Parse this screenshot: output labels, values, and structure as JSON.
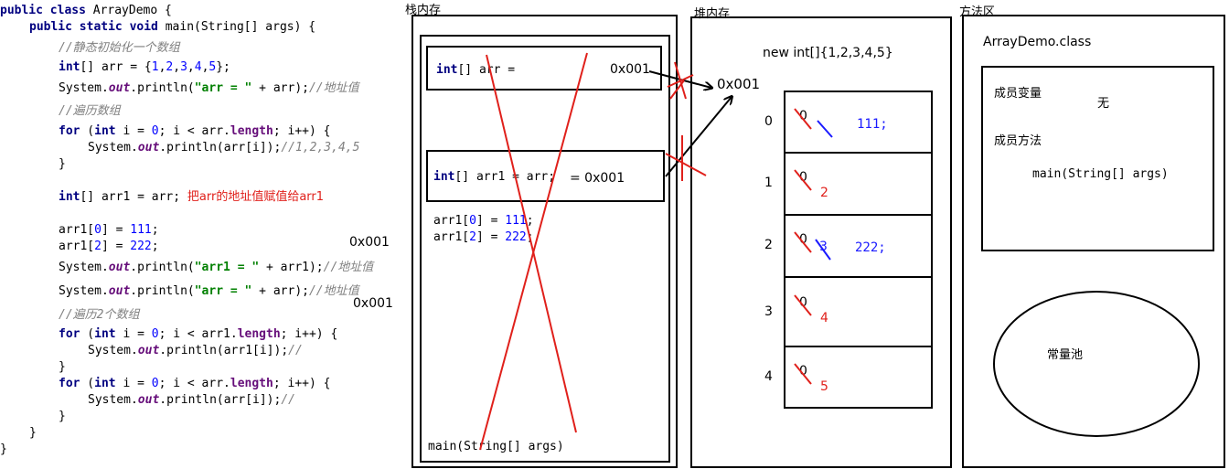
{
  "code": {
    "l1_kw": "public class",
    "l1_rest": " ArrayDemo {",
    "l2_kw": "public static void",
    "l2_rest": " main(String[] args) {",
    "c1": "//静态初始化一个数组",
    "l4_kw": "int",
    "l4_a": "[] arr = {",
    "l4_n1": "1",
    "l4_n2": "2",
    "l4_n3": "3",
    "l4_n4": "4",
    "l4_n5": "5",
    "l4_end": "};",
    "l5_a": "System.",
    "l5_out": "out",
    "l5_b": ".println(",
    "l5_str": "\"arr = \"",
    "l5_c": " + arr);",
    "l5_cm": "//地址值",
    "c2": "//遍历数组",
    "l7_for": "for",
    "l7_a": " (",
    "l7_int": "int",
    "l7_b": " i = ",
    "l7_0": "0",
    "l7_c": "; i < arr.",
    "l7_len": "length",
    "l7_d": "; i++) {",
    "l8_a": "System.",
    "l8_out": "out",
    "l8_b": ".println(arr[i]);",
    "l8_cm": "//1,2,3,4,5",
    "l9": "}",
    "l10_kw": "int",
    "l10_rest": "[] arr1 = arr;",
    "l10_red": "把arr的地址值赋值给arr1",
    "l11_a": "arr1[",
    "l11_i": "0",
    "l11_b": "] = ",
    "l11_v": "111",
    "l11_c": ";",
    "l12_a": "arr1[",
    "l12_i": "2",
    "l12_b": "] = ",
    "l12_v": "222",
    "l12_c": ";",
    "l13_a": "System.",
    "l13_out": "out",
    "l13_b": ".println(",
    "l13_str": "\"arr1 = \"",
    "l13_c": " + arr1);",
    "l13_cm": "//地址值",
    "l14_a": "System.",
    "l14_out": "out",
    "l14_b": ".println(",
    "l14_str": "\"arr = \"",
    "l14_c": " + arr);",
    "l14_cm": "//地址值",
    "c3": "//遍历2个数组",
    "l16_for": "for",
    "l16_a": " (",
    "l16_int": "int",
    "l16_b": " i = ",
    "l16_0": "0",
    "l16_c": "; i < arr1.",
    "l16_len": "length",
    "l16_d": "; i++) {",
    "l17_a": "System.",
    "l17_out": "out",
    "l17_b": ".println(arr1[i]);",
    "l17_cm": "//",
    "l18": "}",
    "l19_for": "for",
    "l19_a": " (",
    "l19_int": "int",
    "l19_b": " i = ",
    "l19_0": "0",
    "l19_c": "; i < arr.",
    "l19_len": "length",
    "l19_d": "; i++) {",
    "l20_a": "System.",
    "l20_out": "out",
    "l20_b": ".println(arr[i]);",
    "l20_cm": "//",
    "l21": "}",
    "l22": "}",
    "l23": "}"
  },
  "notes": {
    "addr_a": "0x001",
    "addr_b": "0x001"
  },
  "stack": {
    "title": "栈内存",
    "var1_kw": "int",
    "var1_rest": "[] arr =",
    "var1_addr": "0x001",
    "var2_kw": "int",
    "var2_rest": "[] arr1 = arr;",
    "var2_addr": "= 0x001",
    "a1_a": "arr1[",
    "a1_i": "0",
    "a1_b": "] = ",
    "a1_v": "111",
    "a1_c": ";",
    "a2_a": "arr1[",
    "a2_i": "2",
    "a2_b": "] = ",
    "a2_v": "222",
    "a2_c": ";",
    "frame": "main(String[] args)"
  },
  "heap": {
    "title": "堆内存",
    "new_label": "new int[]{1,2,3,4,5}",
    "addr": "0x001",
    "cells": [
      {
        "index": "0",
        "old": "0",
        "val": "111;",
        "val_color": "#1a1aff"
      },
      {
        "index": "1",
        "old": "0",
        "val": "2",
        "val_color": "#e0201b"
      },
      {
        "index": "2",
        "old": "0",
        "mid": "3",
        "val": "222;",
        "val_color": "#1a1aff"
      },
      {
        "index": "3",
        "old": "0",
        "val": "4",
        "val_color": "#e0201b"
      },
      {
        "index": "4",
        "old": "0",
        "val": "5",
        "val_color": "#e0201b"
      }
    ]
  },
  "method": {
    "title": "方法区",
    "class_name": "ArrayDemo.class",
    "member_vars": "成员变量",
    "none": "无",
    "member_methods": "成员方法",
    "main_sig": "main(String[] args)",
    "constant_pool": "常量池"
  },
  "colors": {
    "strike": "#e0201b",
    "blue": "#1a1aff",
    "arrow": "#000000"
  }
}
